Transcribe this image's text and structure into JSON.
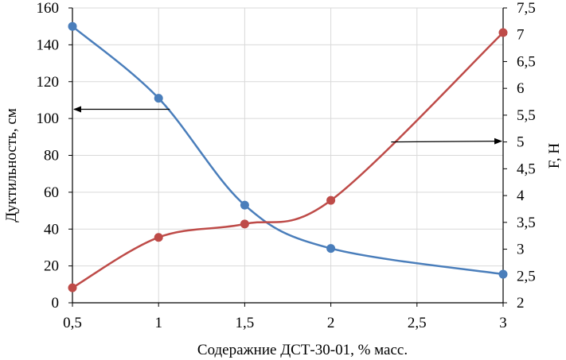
{
  "chart_data": {
    "type": "line",
    "title": "",
    "xlabel": "Содеражние ДСТ-30-01, % масс.",
    "ylabel": "Дуктильность, см",
    "y2label": "F, Н",
    "grid": true,
    "xlim": [
      0.5,
      3
    ],
    "ylim": [
      0,
      160
    ],
    "y2lim": [
      2,
      7.5
    ],
    "x_ticks": [
      "0,5",
      "1",
      "1,5",
      "2",
      "2,5",
      "3"
    ],
    "y_ticks": [
      "0",
      "20",
      "40",
      "60",
      "80",
      "100",
      "120",
      "140",
      "160"
    ],
    "y2_ticks": [
      "2",
      "2,5",
      "3",
      "3,5",
      "4",
      "4,5",
      "5",
      "5,5",
      "6",
      "6,5",
      "7",
      "7,5"
    ],
    "series": [
      {
        "name": "Дуктильность",
        "axis": "left",
        "color": "#4a7ebb",
        "x": [
          0.5,
          1,
          1.5,
          2,
          3
        ],
        "values": [
          150,
          111,
          53,
          29.5,
          15.5
        ]
      },
      {
        "name": "F",
        "axis": "right",
        "color": "#be4b48",
        "x": [
          0.5,
          1,
          1.5,
          2,
          3
        ],
        "values": [
          2.28,
          3.22,
          3.47,
          3.91,
          7.04
        ]
      }
    ],
    "annotations": [
      {
        "name": "arrow-to-left-axis",
        "series": "Дуктильность",
        "x": 1.0,
        "y": 105,
        "direction": "left",
        "target": 0.5
      },
      {
        "name": "arrow-to-right-axis",
        "series": "F",
        "x": 2.35,
        "y2": 5.0,
        "direction": "right",
        "target": 3
      }
    ]
  }
}
